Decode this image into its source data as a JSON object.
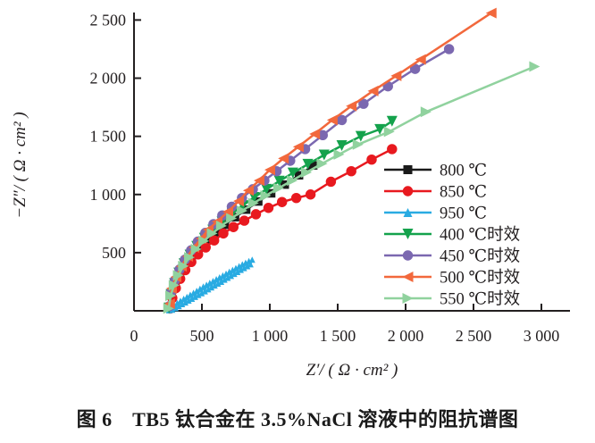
{
  "figure": {
    "caption": "图 6　TB5 钛合金在 3.5%NaCl 溶液中的阻抗谱图"
  },
  "chart_data": {
    "type": "line",
    "subtype": "EIS Nyquist impedance plot",
    "title": "",
    "xlabel": "Z′/ ( Ω · cm² )",
    "ylabel": "−Z″/ ( Ω · cm² )",
    "xlim": [
      0,
      3000
    ],
    "ylim": [
      0,
      2500
    ],
    "x_ticks": [
      0,
      500,
      1000,
      1500,
      2000,
      2500,
      3000
    ],
    "x_tick_labels": [
      "0",
      "500",
      "1 000",
      "1 500",
      "2 000",
      "2 500",
      "3 000"
    ],
    "y_ticks": [
      500,
      1000,
      1500,
      2000,
      2500
    ],
    "y_tick_labels": [
      "500",
      "1 000",
      "1 500",
      "2 000",
      "2 500"
    ],
    "grid": false,
    "legend_position": "inside-right-middle-no-border",
    "axis_color": "#231f20",
    "series": [
      {
        "name": "800 ℃",
        "color": "#1a1a1a",
        "marker": "square",
        "marker_size": 9.5,
        "line_width": 2.5,
        "points": [
          [
            260,
            25
          ],
          [
            278,
            130
          ],
          [
            305,
            225
          ],
          [
            338,
            315
          ],
          [
            378,
            395
          ],
          [
            424,
            470
          ],
          [
            476,
            540
          ],
          [
            534,
            610
          ],
          [
            598,
            675
          ],
          [
            668,
            740
          ],
          [
            744,
            805
          ],
          [
            826,
            870
          ],
          [
            915,
            940
          ],
          [
            1010,
            1010
          ],
          [
            1110,
            1085
          ],
          [
            1215,
            1165
          ],
          [
            1320,
            1250
          ]
        ]
      },
      {
        "name": "850 ℃",
        "color": "#e8191f",
        "marker": "circle",
        "marker_size": 11,
        "line_width": 2.5,
        "points": [
          [
            265,
            20
          ],
          [
            282,
            110
          ],
          [
            308,
            195
          ],
          [
            340,
            275
          ],
          [
            378,
            350
          ],
          [
            422,
            420
          ],
          [
            472,
            485
          ],
          [
            528,
            545
          ],
          [
            590,
            605
          ],
          [
            658,
            665
          ],
          [
            732,
            720
          ],
          [
            812,
            775
          ],
          [
            898,
            830
          ],
          [
            990,
            885
          ],
          [
            1090,
            935
          ],
          [
            1195,
            970
          ],
          [
            1300,
            1000
          ],
          [
            1450,
            1110
          ],
          [
            1600,
            1200
          ],
          [
            1750,
            1300
          ],
          [
            1900,
            1390
          ]
        ]
      },
      {
        "name": "950 ℃",
        "color": "#29abe2",
        "marker": "triangle-up",
        "marker_size": 7,
        "line_width": 2,
        "points": [
          [
            258,
            5
          ],
          [
            270,
            35
          ],
          [
            282,
            10
          ],
          [
            294,
            52
          ],
          [
            306,
            24
          ],
          [
            318,
            68
          ],
          [
            330,
            40
          ],
          [
            342,
            86
          ],
          [
            354,
            58
          ],
          [
            366,
            104
          ],
          [
            378,
            72
          ],
          [
            390,
            120
          ],
          [
            402,
            88
          ],
          [
            414,
            138
          ],
          [
            426,
            104
          ],
          [
            438,
            155
          ],
          [
            450,
            120
          ],
          [
            462,
            172
          ],
          [
            474,
            136
          ],
          [
            486,
            190
          ],
          [
            498,
            152
          ],
          [
            510,
            208
          ],
          [
            522,
            168
          ],
          [
            534,
            224
          ],
          [
            546,
            185
          ],
          [
            558,
            240
          ],
          [
            570,
            202
          ],
          [
            582,
            256
          ],
          [
            594,
            218
          ],
          [
            606,
            272
          ],
          [
            618,
            234
          ],
          [
            630,
            288
          ],
          [
            642,
            250
          ],
          [
            654,
            304
          ],
          [
            666,
            268
          ],
          [
            678,
            320
          ],
          [
            690,
            284
          ],
          [
            702,
            336
          ],
          [
            714,
            300
          ],
          [
            726,
            352
          ],
          [
            738,
            318
          ],
          [
            750,
            368
          ],
          [
            762,
            334
          ],
          [
            774,
            384
          ],
          [
            786,
            352
          ],
          [
            798,
            400
          ],
          [
            810,
            368
          ],
          [
            822,
            414
          ],
          [
            834,
            384
          ],
          [
            846,
            428
          ],
          [
            858,
            400
          ],
          [
            870,
            440
          ]
        ]
      },
      {
        "name": "400 ℃时效",
        "color": "#14a24c",
        "marker": "triangle-down",
        "marker_size": 12,
        "line_width": 2.5,
        "points": [
          [
            258,
            25
          ],
          [
            272,
            140
          ],
          [
            298,
            235
          ],
          [
            330,
            325
          ],
          [
            368,
            405
          ],
          [
            412,
            480
          ],
          [
            462,
            555
          ],
          [
            518,
            625
          ],
          [
            580,
            695
          ],
          [
            648,
            765
          ],
          [
            722,
            835
          ],
          [
            800,
            905
          ],
          [
            885,
            975
          ],
          [
            975,
            1045
          ],
          [
            1070,
            1115
          ],
          [
            1170,
            1185
          ],
          [
            1280,
            1260
          ],
          [
            1400,
            1340
          ],
          [
            1530,
            1420
          ],
          [
            1670,
            1500
          ],
          [
            1810,
            1560
          ],
          [
            1900,
            1630
          ]
        ]
      },
      {
        "name": "450 ℃时效",
        "color": "#7b68b0",
        "marker": "circle",
        "marker_size": 11,
        "line_width": 2.5,
        "points": [
          [
            260,
            40
          ],
          [
            274,
            160
          ],
          [
            300,
            260
          ],
          [
            335,
            355
          ],
          [
            375,
            440
          ],
          [
            420,
            520
          ],
          [
            470,
            595
          ],
          [
            525,
            670
          ],
          [
            585,
            745
          ],
          [
            650,
            820
          ],
          [
            720,
            895
          ],
          [
            795,
            970
          ],
          [
            875,
            1045
          ],
          [
            960,
            1120
          ],
          [
            1050,
            1200
          ],
          [
            1150,
            1290
          ],
          [
            1260,
            1390
          ],
          [
            1390,
            1510
          ],
          [
            1530,
            1640
          ],
          [
            1690,
            1780
          ],
          [
            1870,
            1930
          ],
          [
            2070,
            2080
          ],
          [
            2320,
            2250
          ]
        ]
      },
      {
        "name": "500 ℃时效",
        "color": "#f2683c",
        "marker": "triangle-left",
        "marker_size": 12,
        "line_width": 2.5,
        "points": [
          [
            262,
            60
          ],
          [
            276,
            192
          ],
          [
            309,
            291
          ],
          [
            349,
            383
          ],
          [
            395,
            468
          ],
          [
            441,
            545
          ],
          [
            494,
            621
          ],
          [
            546,
            698
          ],
          [
            612,
            767
          ],
          [
            691,
            851
          ],
          [
            770,
            943
          ],
          [
            842,
            1035
          ],
          [
            921,
            1120
          ],
          [
            1000,
            1212
          ],
          [
            1100,
            1310
          ],
          [
            1210,
            1410
          ],
          [
            1330,
            1520
          ],
          [
            1460,
            1640
          ],
          [
            1600,
            1760
          ],
          [
            1760,
            1890
          ],
          [
            1930,
            2020
          ],
          [
            2110,
            2160
          ],
          [
            2630,
            2560
          ]
        ]
      },
      {
        "name": "550 ℃时效",
        "color": "#90d29e",
        "marker": "triangle-right",
        "marker_size": 12,
        "line_width": 2.5,
        "points": [
          [
            255,
            20
          ],
          [
            270,
            130
          ],
          [
            295,
            220
          ],
          [
            326,
            305
          ],
          [
            364,
            385
          ],
          [
            408,
            460
          ],
          [
            458,
            530
          ],
          [
            514,
            600
          ],
          [
            576,
            665
          ],
          [
            644,
            730
          ],
          [
            718,
            795
          ],
          [
            796,
            860
          ],
          [
            880,
            925
          ],
          [
            970,
            990
          ],
          [
            1065,
            1055
          ],
          [
            1165,
            1120
          ],
          [
            1270,
            1190
          ],
          [
            1385,
            1265
          ],
          [
            1510,
            1345
          ],
          [
            1650,
            1430
          ],
          [
            1880,
            1540
          ],
          [
            2150,
            1710
          ],
          [
            2950,
            2100
          ]
        ]
      }
    ]
  }
}
